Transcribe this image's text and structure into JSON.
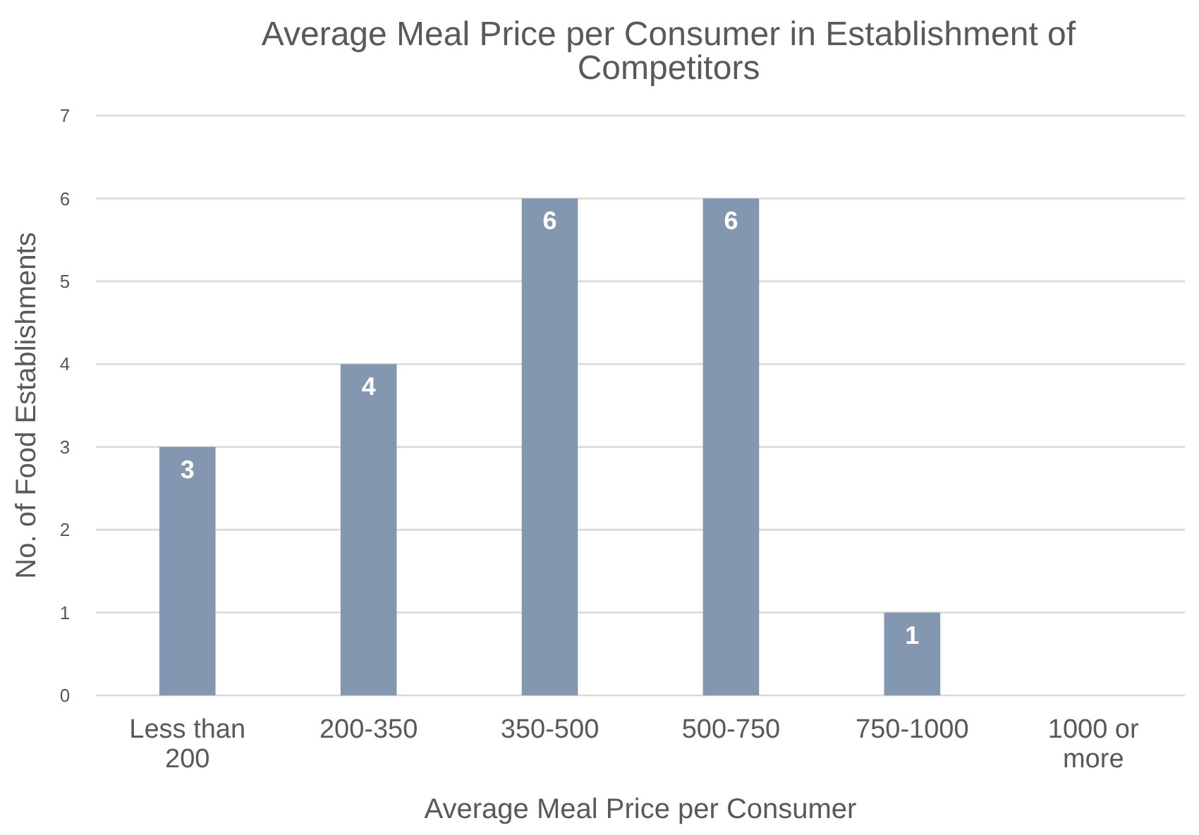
{
  "chart_data": {
    "type": "bar",
    "title": "Average Meal Price per Consumer in Establishment of Competitors",
    "xlabel": "Average Meal Price per Consumer",
    "ylabel": "No. of Food Establishments",
    "categories": [
      "Less than 200",
      "200-350",
      "350-500",
      "500-750",
      "750-1000",
      "1000 or more"
    ],
    "values": [
      3,
      4,
      6,
      6,
      1,
      0
    ],
    "color": "#8497b0",
    "value_labels": [
      "3",
      "4",
      "6",
      "6",
      "1",
      null
    ],
    "ylim": [
      0,
      7
    ],
    "yticks": [
      0,
      1,
      2,
      3,
      4,
      5,
      6,
      7
    ],
    "grid": "y"
  }
}
